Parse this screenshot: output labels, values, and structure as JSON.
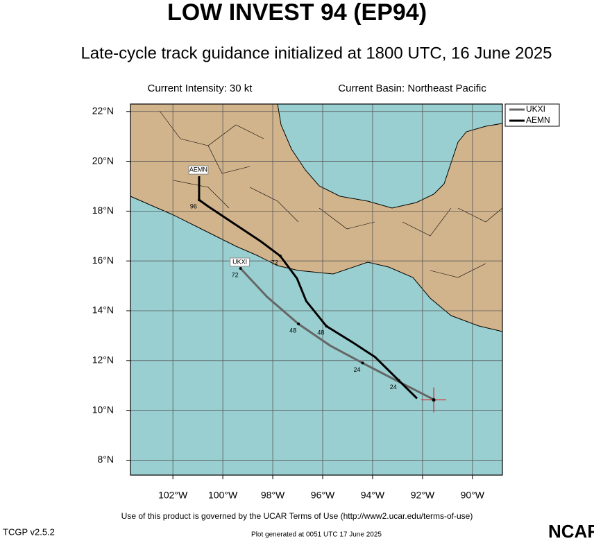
{
  "chart_data": {
    "type": "track-map",
    "title": "LOW INVEST 94 (EP94)",
    "subtitle": "Late-cycle track guidance initialized at 1800 UTC, 16 June 2025",
    "info_left": "Current Intensity: 30 kt",
    "info_right": "Current Basin: Northeast Pacific",
    "footer": "Use of this product is governed by the UCAR Terms of Use (http://www2.ucar.edu/terms-of-use)",
    "version": "TCGP v2.5.2",
    "generated": "Plot generated at 0051 UTC   17 June 2025",
    "logo": "NCAR",
    "xlim": [
      -103.7,
      -88.8
    ],
    "ylim": [
      7.4,
      22.3
    ],
    "xticks": [
      {
        "value": -102,
        "label": "102°W"
      },
      {
        "value": -100,
        "label": "100°W"
      },
      {
        "value": -98,
        "label": "98°W"
      },
      {
        "value": -96,
        "label": "96°W"
      },
      {
        "value": -94,
        "label": "94°W"
      },
      {
        "value": -92,
        "label": "92°W"
      },
      {
        "value": -90,
        "label": "90°W"
      }
    ],
    "yticks": [
      {
        "value": 8,
        "label": "8°N"
      },
      {
        "value": 10,
        "label": "10°N"
      },
      {
        "value": 12,
        "label": "12°N"
      },
      {
        "value": 14,
        "label": "14°N"
      },
      {
        "value": 16,
        "label": "16°N"
      },
      {
        "value": 18,
        "label": "18°N"
      },
      {
        "value": 20,
        "label": "20°N"
      },
      {
        "value": 22,
        "label": "22°N"
      }
    ],
    "grid": true,
    "current_position": {
      "lon": -91.55,
      "lat": 10.42,
      "color": "#e02020"
    },
    "series": [
      {
        "name": "UKXI",
        "color": "#666666",
        "x": [
          -91.52,
          -92.95,
          -94.4,
          -95.7,
          -96.97,
          -98.23,
          -99.29
        ],
        "values": [
          10.42,
          11.15,
          11.9,
          12.6,
          13.47,
          14.56,
          15.7
        ],
        "point_labels": [
          null,
          null,
          "24",
          null,
          "48",
          null,
          "72"
        ]
      },
      {
        "name": "AEMN",
        "color": "#000000",
        "x": [
          -92.22,
          -92.95,
          -93.9,
          -94.8,
          -95.85,
          -96.66,
          -97.03,
          -97.7,
          -98.5,
          -99.4,
          -100.6,
          -100.95,
          -100.95
        ],
        "values": [
          10.48,
          11.2,
          12.14,
          12.73,
          13.38,
          14.39,
          15.3,
          16.2,
          16.8,
          17.4,
          18.2,
          18.45,
          19.4
        ],
        "point_labels": [
          null,
          "24",
          null,
          null,
          "48",
          null,
          null,
          "72",
          null,
          null,
          null,
          "96",
          null
        ]
      }
    ]
  }
}
